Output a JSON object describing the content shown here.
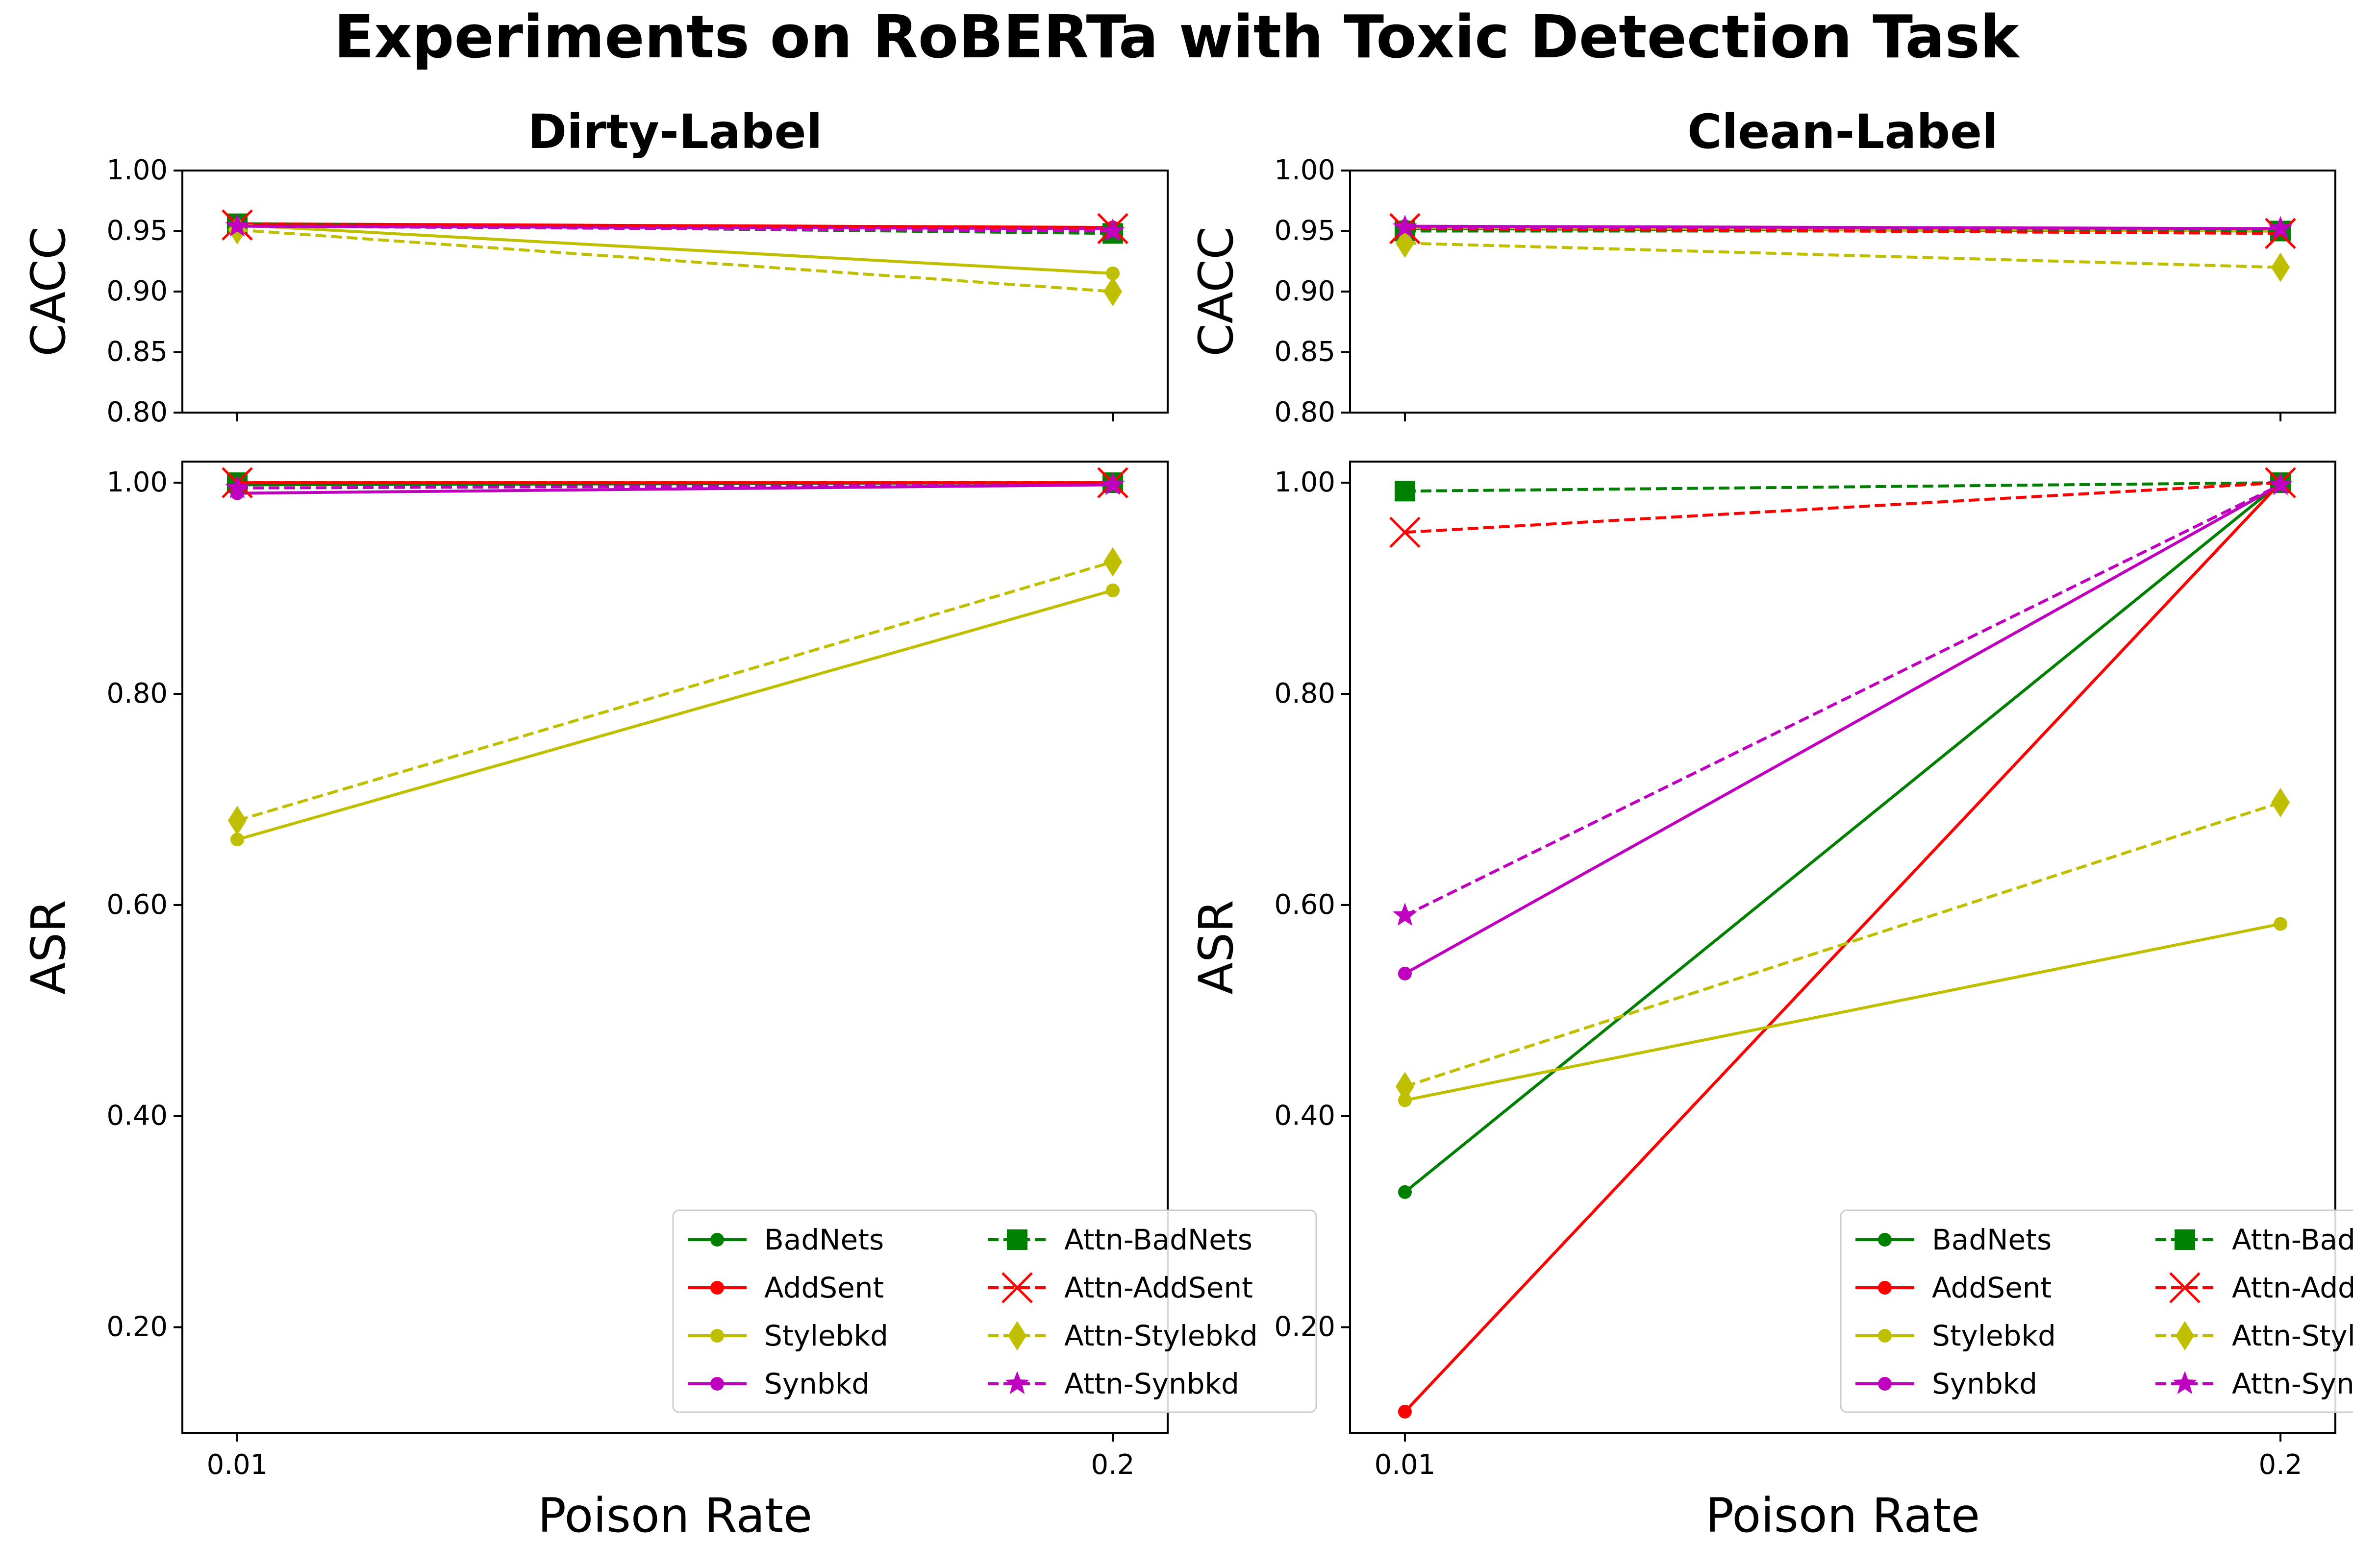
{
  "chart_data": {
    "type": "line",
    "suptitle": "Experiments on RoBERTa with Toxic Detection Task",
    "x": [
      "0.01",
      "0.2"
    ],
    "xlabel": "Poison Rate",
    "legend_location": "lower-right",
    "legend": [
      "BadNets",
      "AddSent",
      "Stylebkd",
      "Synbkd",
      "Attn-BadNets",
      "Attn-AddSent",
      "Attn-Stylebkd",
      "Attn-Synbkd"
    ],
    "colors": {
      "BadNets": "#008000",
      "AddSent": "#ff0000",
      "Stylebkd": "#bfbf00",
      "Synbkd": "#bf00bf"
    },
    "ticks": {
      "cacc": [
        "1.00",
        "0.95",
        "0.90",
        "0.85",
        "0.80"
      ],
      "asr": [
        "1.00",
        "0.80",
        "0.60",
        "0.40",
        "0.20"
      ]
    },
    "panels": [
      {
        "title": "Dirty-Label",
        "cacc": {
          "ylabel": "CACC",
          "ylim": [
            0.8,
            1.0
          ],
          "series": [
            {
              "name": "BadNets",
              "values": [
                0.955,
                0.952
              ]
            },
            {
              "name": "AddSent",
              "values": [
                0.956,
                0.953
              ]
            },
            {
              "name": "Stylebkd",
              "values": [
                0.955,
                0.915
              ]
            },
            {
              "name": "Synbkd",
              "values": [
                0.954,
                0.952
              ]
            },
            {
              "name": "Attn-BadNets",
              "values": [
                0.956,
                0.948
              ]
            },
            {
              "name": "Attn-AddSent",
              "values": [
                0.955,
                0.952
              ]
            },
            {
              "name": "Attn-Stylebkd",
              "values": [
                0.951,
                0.9
              ]
            },
            {
              "name": "Attn-Synbkd",
              "values": [
                0.954,
                0.95
              ]
            }
          ]
        },
        "asr": {
          "ylabel": "ASR",
          "ylim": [
            0.1,
            1.02
          ],
          "series": [
            {
              "name": "BadNets",
              "values": [
                0.998,
                1.0
              ]
            },
            {
              "name": "AddSent",
              "values": [
                1.0,
                1.0
              ]
            },
            {
              "name": "Stylebkd",
              "values": [
                0.662,
                0.898
              ]
            },
            {
              "name": "Synbkd",
              "values": [
                0.99,
                0.998
              ]
            },
            {
              "name": "Attn-BadNets",
              "values": [
                1.0,
                1.0
              ]
            },
            {
              "name": "Attn-AddSent",
              "values": [
                1.0,
                1.0
              ]
            },
            {
              "name": "Attn-Stylebkd",
              "values": [
                0.68,
                0.925
              ]
            },
            {
              "name": "Attn-Synbkd",
              "values": [
                0.995,
                0.998
              ]
            }
          ]
        }
      },
      {
        "title": "Clean-Label",
        "cacc": {
          "ylabel": "CACC",
          "ylim": [
            0.8,
            1.0
          ],
          "series": [
            {
              "name": "BadNets",
              "values": [
                0.952,
                0.95
              ]
            },
            {
              "name": "AddSent",
              "values": [
                0.953,
                0.95
              ]
            },
            {
              "name": "Stylebkd",
              "values": [
                0.953,
                0.95
              ]
            },
            {
              "name": "Synbkd",
              "values": [
                0.954,
                0.952
              ]
            },
            {
              "name": "Attn-BadNets",
              "values": [
                0.95,
                0.95
              ]
            },
            {
              "name": "Attn-AddSent",
              "values": [
                0.952,
                0.948
              ]
            },
            {
              "name": "Attn-Stylebkd",
              "values": [
                0.94,
                0.92
              ]
            },
            {
              "name": "Attn-Synbkd",
              "values": [
                0.953,
                0.952
              ]
            }
          ]
        },
        "asr": {
          "ylabel": "ASR",
          "ylim": [
            0.1,
            1.02
          ],
          "series": [
            {
              "name": "BadNets",
              "values": [
                0.328,
                1.0
              ]
            },
            {
              "name": "AddSent",
              "values": [
                0.12,
                1.0
              ]
            },
            {
              "name": "Stylebkd",
              "values": [
                0.415,
                0.582
              ]
            },
            {
              "name": "Synbkd",
              "values": [
                0.535,
                0.998
              ]
            },
            {
              "name": "Attn-BadNets",
              "values": [
                0.992,
                1.0
              ]
            },
            {
              "name": "Attn-AddSent",
              "values": [
                0.953,
                1.0
              ]
            },
            {
              "name": "Attn-Stylebkd",
              "values": [
                0.428,
                0.697
              ]
            },
            {
              "name": "Attn-Synbkd",
              "values": [
                0.59,
                0.998
              ]
            }
          ]
        }
      }
    ]
  }
}
